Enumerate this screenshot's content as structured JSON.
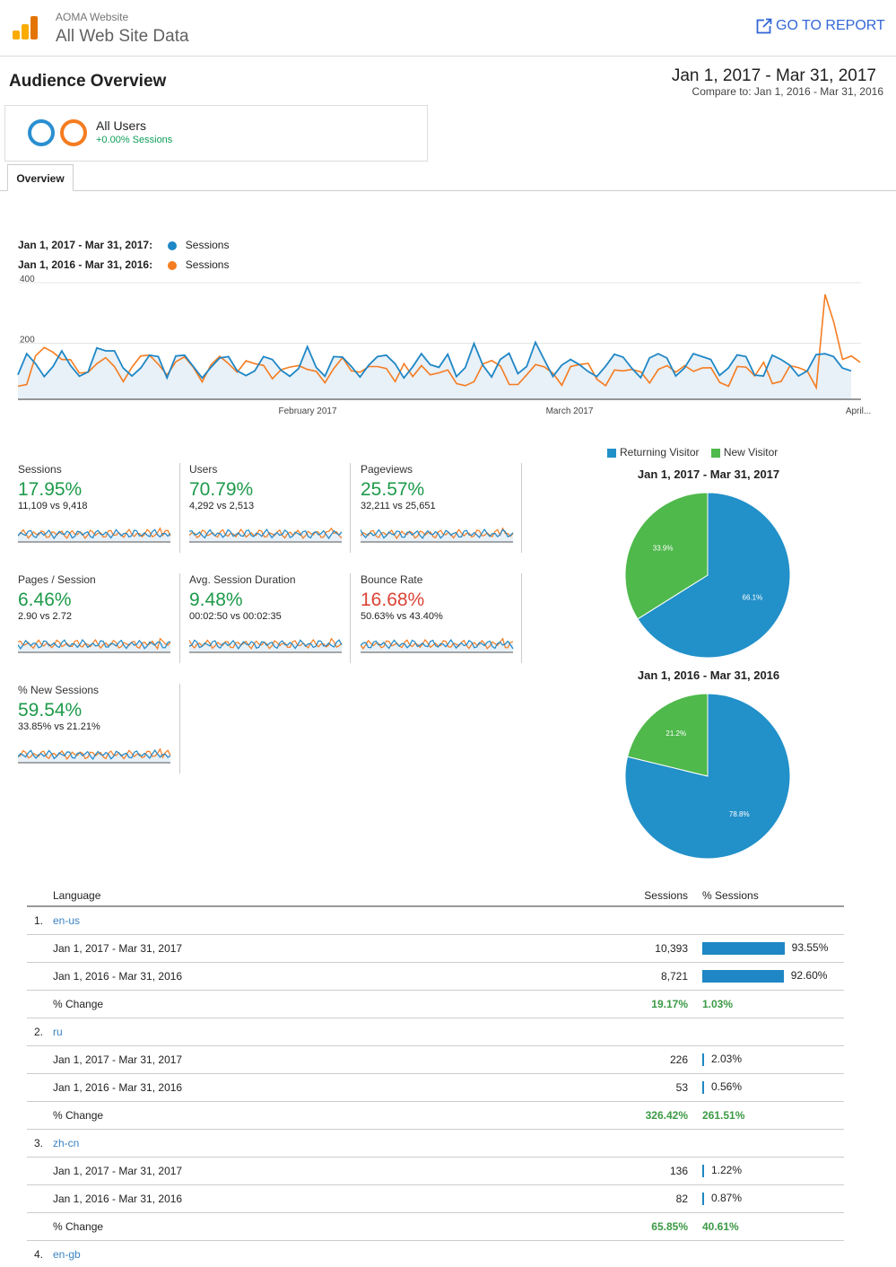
{
  "header": {
    "account": "AOMA Website",
    "property": "All Web Site Data",
    "goto_label": "GO TO REPORT"
  },
  "page_title": "Audience Overview",
  "date_range": "Jan 1, 2017 - Mar 31, 2017",
  "compare_range": "Compare to: Jan 1, 2016 - Mar 31, 2016",
  "segment": {
    "label": "All Users",
    "sub": "+0.00% Sessions"
  },
  "tab_overview": "Overview",
  "colors": {
    "current": "#1f87c5",
    "previous": "#f57c20",
    "new_visitor": "#4fb94b",
    "returning": "#2290c9",
    "green": "#1e9a4a",
    "red": "#db4437"
  },
  "legend": {
    "current_range": "Jan 1, 2017 - Mar 31, 2017:",
    "previous_range": "Jan 1, 2016 - Mar 31, 2016:",
    "series": "Sessions"
  },
  "chart_data": {
    "type": "line",
    "ylim": [
      0,
      400
    ],
    "y_ticks": [
      "400",
      "200"
    ],
    "x_labels": [
      "February 2017",
      "March 2017",
      "April..."
    ],
    "series": [
      {
        "name": "Sessions",
        "values": [
          86,
          160,
          125,
          80,
          115,
          170,
          118,
          81,
          96,
          180,
          170,
          170,
          110,
          82,
          110,
          155,
          150,
          75,
          152,
          155,
          115,
          75,
          112,
          145,
          150,
          100,
          83,
          100,
          150,
          140,
          102,
          81,
          108,
          185,
          112,
          81,
          150,
          148,
          116,
          78,
          120,
          150,
          155,
          125,
          75,
          114,
          160,
          122,
          112,
          158,
          80,
          111,
          196,
          120,
          78,
          140,
          162,
          90,
          115,
          200,
          140,
          80,
          120,
          140,
          122,
          98,
          80,
          116,
          158,
          148,
          109,
          76,
          145,
          160,
          145,
          82,
          110,
          160,
          150,
          140,
          84,
          110,
          156,
          150,
          85,
          82,
          155,
          140,
          120,
          82,
          100,
          157,
          160,
          150,
          110,
          100
        ]
      },
      {
        "name": "Sessions",
        "values": [
          46,
          52,
          152,
          182,
          165,
          140,
          139,
          92,
          95,
          125,
          146,
          115,
          62,
          113,
          152,
          155,
          123,
          85,
          132,
          149,
          112,
          61,
          121,
          151,
          125,
          95,
          135,
          125,
          119,
          72,
          104,
          113,
          118,
          105,
          98,
          58,
          108,
          146,
          100,
          95,
          115,
          115,
          108,
          62,
          125,
          80,
          118,
          86,
          93,
          103,
          55,
          48,
          62,
          124,
          136,
          117,
          52,
          52,
          86,
          122,
          114,
          91,
          49,
          115,
          122,
          126,
          70,
          48,
          103,
          100,
          105,
          96,
          57,
          105,
          118,
          95,
          118,
          98,
          110,
          111,
          59,
          46,
          115,
          113,
          82,
          130,
          55,
          63,
          118,
          111,
          98,
          41,
          368,
          270,
          140,
          152,
          130
        ]
      }
    ]
  },
  "metrics": [
    {
      "name": "Sessions",
      "pct": "17.95%",
      "vs": "11,109 vs 9,418",
      "color": "green"
    },
    {
      "name": "Users",
      "pct": "70.79%",
      "vs": "4,292 vs 2,513",
      "color": "green"
    },
    {
      "name": "Pageviews",
      "pct": "25.57%",
      "vs": "32,211 vs 25,651",
      "color": "green"
    },
    {
      "name": "Pages / Session",
      "pct": "6.46%",
      "vs": "2.90 vs 2.72",
      "color": "green"
    },
    {
      "name": "Avg. Session Duration",
      "pct": "9.48%",
      "vs": "00:02:50 vs 00:02:35",
      "color": "green"
    },
    {
      "name": "Bounce Rate",
      "pct": "16.68%",
      "vs": "50.63% vs 43.40%",
      "color": "red"
    },
    {
      "name": "% New Sessions",
      "pct": "59.54%",
      "vs": "33.85% vs 21.21%",
      "color": "green"
    }
  ],
  "pie": {
    "legend_returning": "Returning Visitor",
    "legend_new": "New Visitor",
    "charts": [
      {
        "title": "Jan 1, 2017 - Mar 31, 2017",
        "returning": 66.1,
        "new": 33.9,
        "returning_label": "66.1%",
        "new_label": "33.9%"
      },
      {
        "title": "Jan 1, 2016 - Mar 31, 2016",
        "returning": 78.8,
        "new": 21.2,
        "returning_label": "78.8%",
        "new_label": "21.2%"
      }
    ]
  },
  "table": {
    "col_language": "Language",
    "col_sessions": "Sessions",
    "col_pct": "% Sessions",
    "rows": [
      {
        "type": "lang",
        "idx": "1.",
        "label": "en-us"
      },
      {
        "type": "data",
        "label": "Jan 1, 2017 - Mar 31, 2017",
        "sessions": "10,393",
        "pct": "93.55%",
        "bar": 93.55
      },
      {
        "type": "data",
        "label": "Jan 1, 2016 - Mar 31, 2016",
        "sessions": "8,721",
        "pct": "92.60%",
        "bar": 92.6
      },
      {
        "type": "change",
        "label": "% Change",
        "sessions": "19.17%",
        "pct": "1.03%"
      },
      {
        "type": "lang",
        "idx": "2.",
        "label": "ru"
      },
      {
        "type": "data",
        "label": "Jan 1, 2017 - Mar 31, 2017",
        "sessions": "226",
        "pct": "2.03%",
        "bar": 2.03
      },
      {
        "type": "data",
        "label": "Jan 1, 2016 - Mar 31, 2016",
        "sessions": "53",
        "pct": "0.56%",
        "bar": 0.56
      },
      {
        "type": "change",
        "label": "% Change",
        "sessions": "326.42%",
        "pct": "261.51%"
      },
      {
        "type": "lang",
        "idx": "3.",
        "label": "zh-cn"
      },
      {
        "type": "data",
        "label": "Jan 1, 2017 - Mar 31, 2017",
        "sessions": "136",
        "pct": "1.22%",
        "bar": 1.22
      },
      {
        "type": "data",
        "label": "Jan 1, 2016 - Mar 31, 2016",
        "sessions": "82",
        "pct": "0.87%",
        "bar": 0.87
      },
      {
        "type": "change",
        "label": "% Change",
        "sessions": "65.85%",
        "pct": "40.61%"
      },
      {
        "type": "lang",
        "idx": "4.",
        "label": "en-gb"
      }
    ]
  }
}
